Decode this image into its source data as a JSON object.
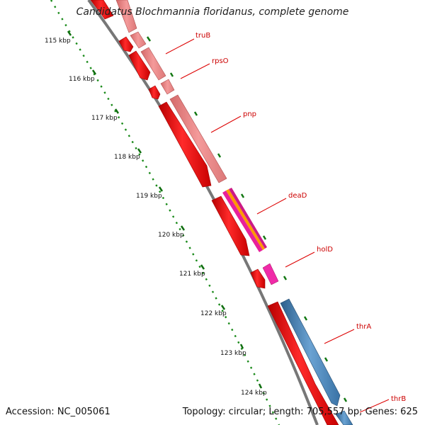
{
  "title": "Candidatus Blochmannia floridanus, complete genome",
  "footer": {
    "accession": "Accession: NC_005061",
    "summary": "Topology: circular; Length: 705,557 bp; Genes: 625"
  },
  "colors": {
    "backbone": "#808080",
    "tick_dots": "#1a8a1a",
    "forward_gene": "#ff1010",
    "forward_gene_light": "#ee8080",
    "reverse_gene": "#4a84b8",
    "magenta_gene": "#e8209a",
    "orange_stripe": "#ff9900",
    "label_red": "#cc0000"
  },
  "kbp_labels": [
    "115 kbp",
    "116 kbp",
    "117 kbp",
    "118 kbp",
    "119 kbp",
    "120 kbp",
    "121 kbp",
    "122 kbp",
    "123 kbp",
    "124 kbp"
  ],
  "gene_labels": [
    "truB",
    "rpsO",
    "pnp",
    "deaD",
    "holD",
    "thrA",
    "thrB"
  ]
}
